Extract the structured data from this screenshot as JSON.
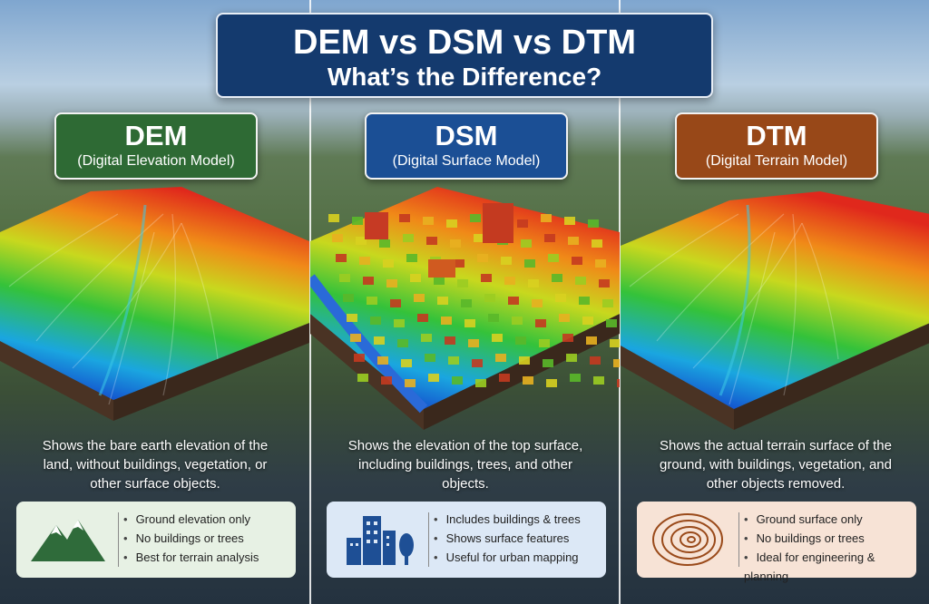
{
  "header": {
    "title": "DEM vs DSM vs DTM",
    "subtitle": "What’s the Difference?"
  },
  "panels": [
    {
      "acronym": "DEM",
      "full_name": "(Digital Elevation Model)",
      "description": "Shows the bare earth elevation of the land, without buildings, vegetation, or other surface objects.",
      "features": [
        "Ground elevation only",
        "No buildings or trees",
        "Best for terrain analysis"
      ]
    },
    {
      "acronym": "DSM",
      "full_name": "(Digital Surface Model)",
      "description": "Shows the elevation of the top surface, including buildings, trees, and other objects.",
      "features": [
        "Includes buildings & trees",
        "Shows surface features",
        "Useful for urban mapping"
      ]
    },
    {
      "acronym": "DTM",
      "full_name": "(Digital Terrain Model)",
      "description": "Shows the actual terrain surface of the ground, with buildings, vegetation, and other objects removed.",
      "features": [
        "Ground surface only",
        "No buildings or trees",
        "Ideal for engineering & planning"
      ]
    }
  ]
}
